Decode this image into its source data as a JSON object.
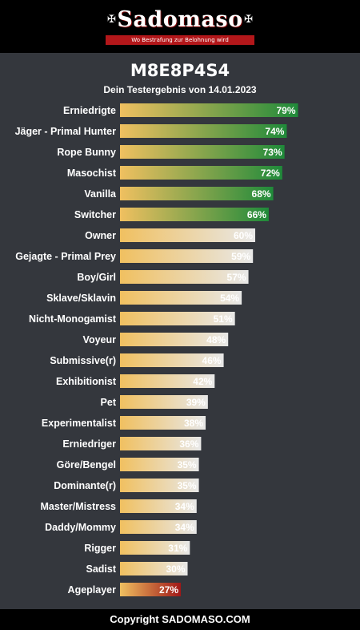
{
  "header": {
    "logo_text": "Sadomaso",
    "logo_tagline": "Wo Bestrafung zur Belohnung wird"
  },
  "title": "M8E8P4S4",
  "subtitle": "Dein Testergebnis von 14.01.2023",
  "footer": {
    "copyright": "Copyright SADOMASO.COM"
  },
  "colors": {
    "background": "#34373d",
    "bar_start": "#f0c060",
    "green_end": "#1f8a3a",
    "neutral_end": "#e8e8e8",
    "red_end": "#a01818",
    "logo_band": "#b3171a"
  },
  "chart_data": {
    "type": "bar",
    "orientation": "horizontal",
    "value_suffix": "%",
    "categories": [
      "Erniedrigte",
      "Jäger - Primal Hunter",
      "Rope Bunny",
      "Masochist",
      "Vanilla",
      "Switcher",
      "Owner",
      "Gejagte - Primal Prey",
      "Boy/Girl",
      "Sklave/Sklavin",
      "Nicht-Monogamist",
      "Voyeur",
      "Submissive(r)",
      "Exhibitionist",
      "Pet",
      "Experimentalist",
      "Erniedriger",
      "Göre/Bengel",
      "Dominante(r)",
      "Master/Mistress",
      "Daddy/Mommy",
      "Rigger",
      "Sadist",
      "Ageplayer"
    ],
    "values": [
      79,
      74,
      73,
      72,
      68,
      66,
      60,
      59,
      57,
      54,
      51,
      48,
      46,
      42,
      39,
      38,
      36,
      35,
      35,
      34,
      34,
      31,
      30,
      27
    ],
    "labels": [
      "79%",
      "74%",
      "73%",
      "72%",
      "68%",
      "66%",
      "60%",
      "59%",
      "57%",
      "54%",
      "51%",
      "48%",
      "46%",
      "42%",
      "39%",
      "38%",
      "36%",
      "35%",
      "35%",
      "34%",
      "34%",
      "31%",
      "30%",
      "27%"
    ],
    "bar_styles": [
      "green",
      "green",
      "green",
      "green",
      "green",
      "green",
      "neutral",
      "neutral",
      "neutral",
      "neutral",
      "neutral",
      "neutral",
      "neutral",
      "neutral",
      "neutral",
      "neutral",
      "neutral",
      "neutral",
      "neutral",
      "neutral",
      "neutral",
      "neutral",
      "neutral",
      "red"
    ],
    "xlim": [
      0,
      100
    ],
    "grid": false
  }
}
